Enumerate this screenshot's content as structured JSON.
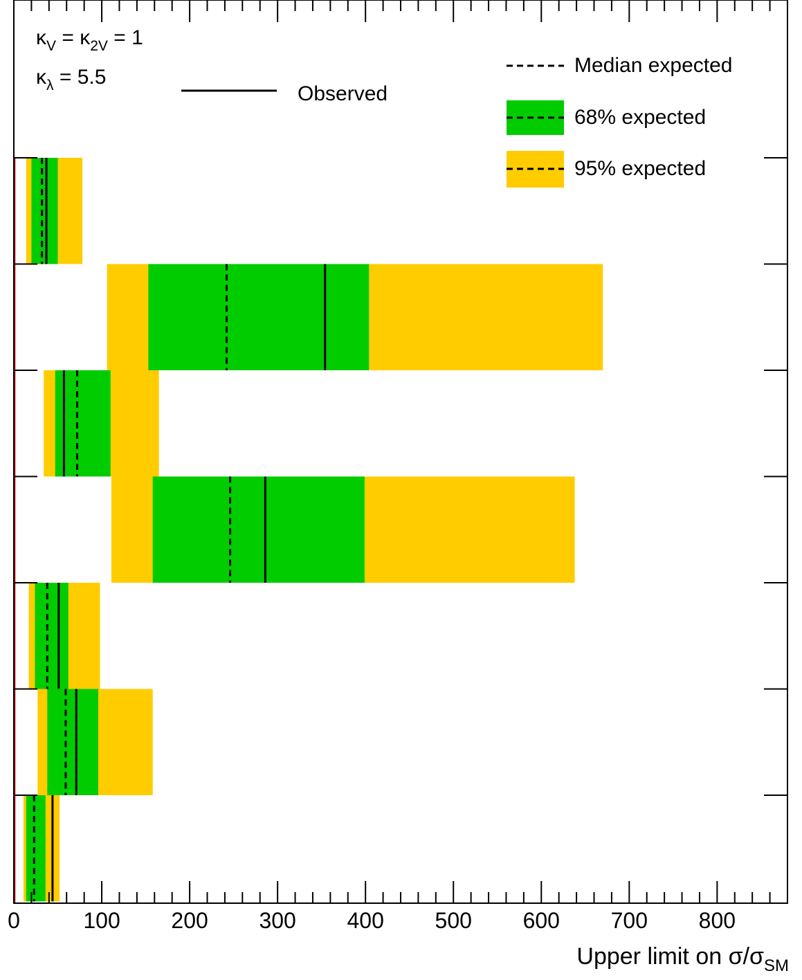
{
  "chart_data": {
    "type": "bar",
    "orientation": "horizontal",
    "xlabel_main": "Upper limit on σ/σ",
    "xlabel_sub": "SM",
    "xlim": [
      0,
      880
    ],
    "x_ticks": [
      "0",
      "100",
      "200",
      "300",
      "400",
      "500",
      "600",
      "700",
      "800"
    ],
    "grid": false,
    "legend_position": "top-right",
    "annotations": {
      "kv_line": {
        "k1": "κ",
        "s1": "V",
        "mid": " = κ",
        "s2": "2V",
        "tail": " = 1"
      },
      "kl_line": {
        "k1": "κ",
        "s1": "λ",
        "tail": " = 5.5"
      }
    },
    "legend": {
      "observed": "Observed",
      "median": "Median expected",
      "band68": "68% expected",
      "band95": "95% expected"
    },
    "colors": {
      "band68": "#00cc00",
      "band95": "#ffcc00",
      "lines": "#000000",
      "reference": "#cc0000"
    },
    "reference_line_x": 1,
    "rows": [
      {
        "exp95_lo": 14,
        "exp68_lo": 20,
        "median": 32,
        "exp68_hi": 50,
        "exp95_hi": 78,
        "observed": 37
      },
      {
        "exp95_lo": 106,
        "exp68_lo": 153,
        "median": 242,
        "exp68_hi": 404,
        "exp95_hi": 670,
        "observed": 354
      },
      {
        "exp95_lo": 34,
        "exp68_lo": 47,
        "median": 72,
        "exp68_hi": 110,
        "exp95_hi": 165,
        "observed": 57
      },
      {
        "exp95_lo": 111,
        "exp68_lo": 158,
        "median": 246,
        "exp68_hi": 399,
        "exp95_hi": 638,
        "observed": 286
      },
      {
        "exp95_lo": 17,
        "exp68_lo": 24,
        "median": 38,
        "exp68_hi": 62,
        "exp95_hi": 98,
        "observed": 51
      },
      {
        "exp95_lo": 27,
        "exp68_lo": 38,
        "median": 59,
        "exp68_hi": 96,
        "exp95_hi": 158,
        "observed": 71
      },
      {
        "exp95_lo": 11,
        "exp68_lo": 14,
        "median": 23,
        "exp68_hi": 36,
        "exp95_hi": 52,
        "observed": 44
      }
    ]
  }
}
